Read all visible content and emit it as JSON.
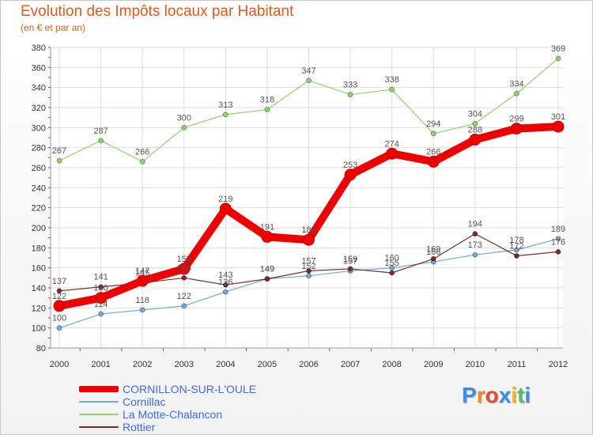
{
  "title": "Evolution des Impôts locaux par Habitant",
  "subtitle": "(en € et par an)",
  "logo": {
    "letters": [
      "P",
      "r",
      "o",
      "x",
      "i",
      "t",
      "i"
    ],
    "colors": [
      "#3a8ee6",
      "#f08a1c",
      "#e64a2e",
      "#3a8ee6",
      "#f2b21b",
      "#5cb85c",
      "#3a8ee6"
    ]
  },
  "chart_data": {
    "type": "line",
    "x": [
      "2000",
      "2001",
      "2002",
      "2003",
      "2004",
      "2005",
      "2006",
      "2007",
      "2008",
      "2009",
      "2010",
      "2011",
      "2012"
    ],
    "ylim": [
      80,
      380
    ],
    "yticks": [
      "80",
      "100",
      "120",
      "140",
      "160",
      "180",
      "200",
      "220",
      "240",
      "260",
      "280",
      "300",
      "320",
      "340",
      "360",
      "380"
    ],
    "grid": true,
    "series": [
      {
        "name": "CORNILLON-SUR-L'OULE",
        "color": "#ee0000",
        "values": [
          122,
          130,
          147,
          159,
          219,
          191,
          188,
          253,
          274,
          266,
          288,
          299,
          301
        ],
        "labels": [
          "122",
          "130",
          "147",
          "159",
          "219",
          "191",
          "188",
          "253",
          "274",
          "266",
          "288",
          "299",
          "301"
        ]
      },
      {
        "name": "Cornillac",
        "color": "#6fa8dc",
        "values": [
          100,
          114,
          118,
          122,
          136,
          149,
          152,
          157,
          160,
          166,
          173,
          178,
          189
        ],
        "labels": [
          "100",
          "114",
          "118",
          "122",
          "136",
          "149",
          "152",
          "157",
          "160",
          "166",
          "173",
          "178",
          "189"
        ]
      },
      {
        "name": "La Motte-Chalancon",
        "color": "#8ed46b",
        "values": [
          267,
          287,
          266,
          300,
          313,
          318,
          347,
          333,
          338,
          294,
          304,
          334,
          369
        ],
        "labels": [
          "267",
          "287",
          "266",
          "300",
          "313",
          "318",
          "347",
          "333",
          "338",
          "294",
          "304",
          "334",
          "369"
        ]
      },
      {
        "name": "Rottier",
        "color": "#7a2a2a",
        "values": [
          137,
          141,
          145,
          150,
          143,
          149,
          157,
          159,
          155,
          169,
          194,
          172,
          176
        ],
        "labels": [
          "137",
          "141",
          "145",
          "150",
          "143",
          "149",
          "157",
          "159",
          "155",
          "169",
          "194",
          "172",
          "176"
        ]
      }
    ]
  }
}
